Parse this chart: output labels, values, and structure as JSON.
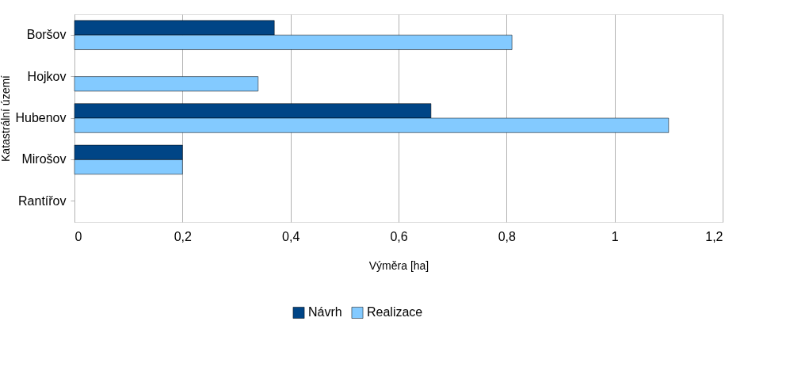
{
  "chart_data": {
    "type": "bar",
    "orientation": "horizontal",
    "xlabel": "Výměra [ha]",
    "ylabel": "Katastrální území",
    "categories": [
      "Boršov",
      "Hojkov",
      "Hubenov",
      "Mirošov",
      "Rantířov"
    ],
    "series": [
      {
        "name": "Návrh",
        "color": "#004586",
        "values": [
          0.37,
          null,
          0.66,
          0.2,
          null
        ]
      },
      {
        "name": "Realizace",
        "color": "#83caff",
        "values": [
          0.81,
          0.34,
          1.1,
          0.2,
          null
        ]
      }
    ],
    "xlim": [
      0,
      1.2
    ],
    "xticks": [
      0,
      {
        "value": 0.2,
        "label": "0,2"
      },
      {
        "value": 0.4,
        "label": "0,4"
      },
      {
        "value": 0.6,
        "label": "0,6"
      },
      {
        "value": 0.8,
        "label": "0,8"
      },
      1,
      {
        "value": 1.2,
        "label": "1,2"
      }
    ],
    "grid": "x",
    "legend": "bottom"
  }
}
